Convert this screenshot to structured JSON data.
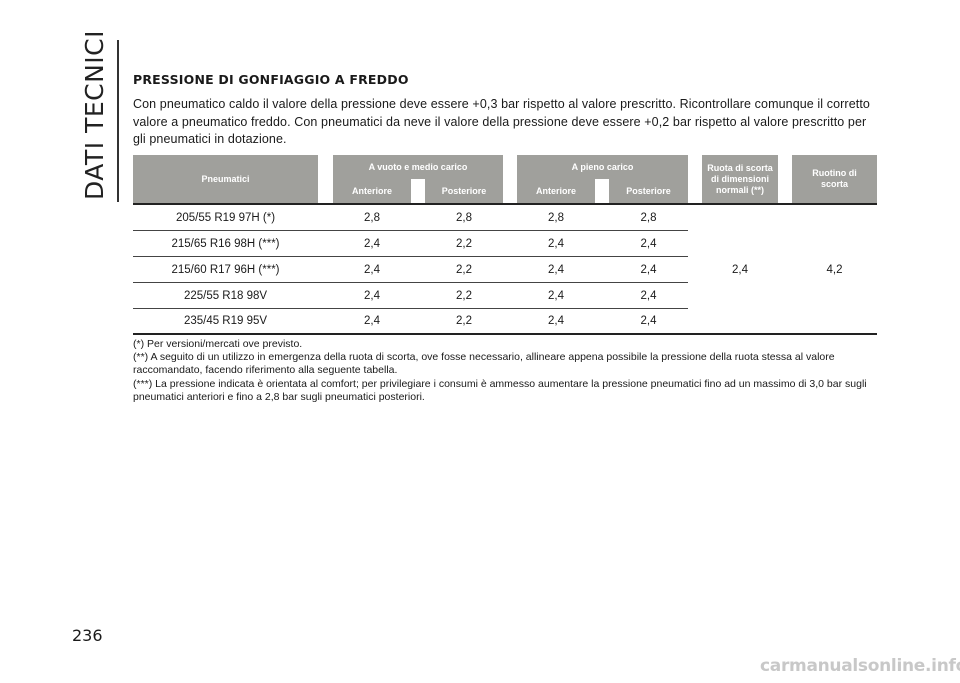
{
  "side_title": "DATI TECNICI",
  "section_title": "PRESSIONE DI GONFIAGGIO A FREDDO",
  "intro": "Con pneumatico caldo il valore della pressione deve essere +0,3 bar rispetto al valore prescritto. Ricontrollare comunque il corretto valore a pneumatico freddo. Con pneumatici da neve il valore della pressione deve essere +0,2 bar rispetto al valore prescritto per gli pneumatici in dotazione.",
  "table": {
    "headers": {
      "tyres": "Pneumatici",
      "group_1": "A vuoto e medio carico",
      "group_2": "A pieno carico",
      "front_1": "Anteriore",
      "rear_1": "Posteriore",
      "front_2": "Anteriore",
      "rear_2": "Posteriore",
      "spare_normal": "Ruota di scorta di dimensioni normali (**)",
      "spare_small": "Ruotino di scorta"
    },
    "rows": [
      {
        "tyre": "205/55 R19 97H (*)",
        "empty_front": "2,8",
        "empty_rear": "2,8",
        "full_front": "2,8",
        "full_rear": "2,8"
      },
      {
        "tyre": "215/65 R16 98H (***)",
        "empty_front": "2,4",
        "empty_rear": "2,2",
        "full_front": "2,4",
        "full_rear": "2,4"
      },
      {
        "tyre": "215/60 R17 96H (***)",
        "empty_front": "2,4",
        "empty_rear": "2,2",
        "full_front": "2,4",
        "full_rear": "2,4"
      },
      {
        "tyre": "225/55 R18 98V",
        "empty_front": "2,4",
        "empty_rear": "2,2",
        "full_front": "2,4",
        "full_rear": "2,4"
      },
      {
        "tyre": "235/45 R19 95V",
        "empty_front": "2,4",
        "empty_rear": "2,2",
        "full_front": "2,4",
        "full_rear": "2,4"
      }
    ],
    "spare_normal_value": "2,4",
    "spare_small_value": "4,2"
  },
  "notes": [
    "(*) Per versioni/mercati ove previsto.",
    "(**) A seguito di un utilizzo in emergenza della ruota di scorta, ove fosse necessario, allineare appena possibile la pressione della ruota stessa al valore raccomandato, facendo riferimento alla seguente tabella.",
    "(***) La pressione indicata è orientata al comfort; per privilegiare i consumi è ammesso aumentare la pressione pneumatici fino ad un massimo di 3,0 bar sugli pneumatici anteriori e fino a 2,8 bar sugli pneumatici posteriori."
  ],
  "page_number": "236",
  "watermark": "carmanualsonline.info"
}
